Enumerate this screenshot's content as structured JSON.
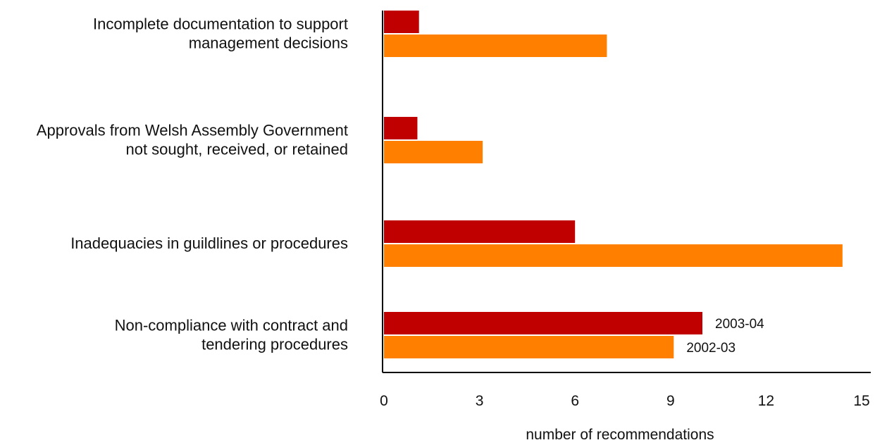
{
  "chart_data": {
    "type": "bar",
    "orientation": "horizontal",
    "categories": [
      [
        "Incomplete documentation to support",
        "management decisions"
      ],
      [
        "Approvals from Welsh Assembly Government",
        "not sought, received, or retained"
      ],
      [
        "Inadequacies in guildlines or procedures"
      ],
      [
        "Non-compliance with contract and",
        "tendering procedures"
      ]
    ],
    "series": [
      {
        "name": "2003-04",
        "color": "#c00000",
        "values": [
          1.1,
          1.05,
          6.0,
          10.0
        ]
      },
      {
        "name": "2002-03",
        "color": "#ff8000",
        "values": [
          7.0,
          3.1,
          14.4,
          9.1
        ]
      }
    ],
    "xlabel": "number of recommendations",
    "xlim": [
      0,
      15
    ],
    "xticks": [
      "0",
      "3",
      "6",
      "9",
      "12",
      "15"
    ],
    "legend": "inline-right-of-last-category",
    "grid": false
  }
}
